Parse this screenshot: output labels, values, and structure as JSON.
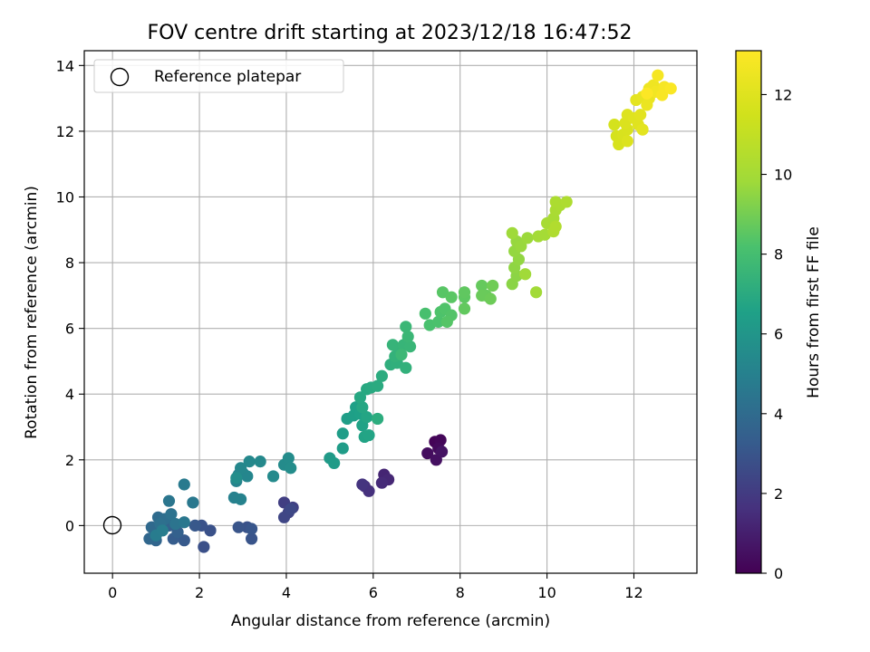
{
  "chart_data": {
    "type": "scatter",
    "title": "FOV centre drift starting at 2023/12/18 16:47:52",
    "xlabel": "Angular distance from reference (arcmin)",
    "ylabel": "Rotation from reference (arcmin)",
    "colorbar_label": "Hours from first FF file",
    "xlim": [
      -0.65,
      13.45
    ],
    "ylim": [
      -1.45,
      14.45
    ],
    "xticks": [
      "0",
      "2",
      "4",
      "6",
      "8",
      "10",
      "12"
    ],
    "yticks": [
      "0",
      "2",
      "4",
      "6",
      "8",
      "10",
      "12",
      "14"
    ],
    "colorbar_ticks": [
      "0",
      "2",
      "4",
      "6",
      "8",
      "10",
      "12"
    ],
    "colorbar_range": [
      0,
      13.1
    ],
    "colormap": "viridis",
    "grid": true,
    "legend": {
      "placement": "upper-left",
      "label": "Reference platepar"
    },
    "reference_point": {
      "x": 0,
      "y": 0
    },
    "point_color_hex": {
      "min": "#440154",
      "max": "#fde725"
    },
    "points": [
      {
        "x": 7.42,
        "y": 2.55,
        "h": 0.1
      },
      {
        "x": 7.55,
        "y": 2.6,
        "h": 0.2
      },
      {
        "x": 7.5,
        "y": 2.35,
        "h": 0.3
      },
      {
        "x": 7.25,
        "y": 2.2,
        "h": 0.4
      },
      {
        "x": 7.45,
        "y": 2.0,
        "h": 0.5
      },
      {
        "x": 7.58,
        "y": 2.25,
        "h": 0.6
      },
      {
        "x": 6.25,
        "y": 1.55,
        "h": 1.2
      },
      {
        "x": 6.35,
        "y": 1.4,
        "h": 1.3
      },
      {
        "x": 6.2,
        "y": 1.3,
        "h": 1.4
      },
      {
        "x": 5.8,
        "y": 1.2,
        "h": 1.5
      },
      {
        "x": 5.9,
        "y": 1.05,
        "h": 1.6
      },
      {
        "x": 5.75,
        "y": 1.25,
        "h": 1.7
      },
      {
        "x": 3.95,
        "y": 0.7,
        "h": 2.1
      },
      {
        "x": 4.15,
        "y": 0.55,
        "h": 2.2
      },
      {
        "x": 4.05,
        "y": 0.4,
        "h": 2.3
      },
      {
        "x": 3.95,
        "y": 0.25,
        "h": 2.4
      },
      {
        "x": 4.1,
        "y": 0.5,
        "h": 2.5
      },
      {
        "x": 2.1,
        "y": -0.65,
        "h": 2.8
      },
      {
        "x": 2.25,
        "y": -0.15,
        "h": 2.85
      },
      {
        "x": 2.05,
        "y": 0.0,
        "h": 2.9
      },
      {
        "x": 3.1,
        "y": -0.05,
        "h": 2.9
      },
      {
        "x": 3.2,
        "y": -0.4,
        "h": 2.95
      },
      {
        "x": 2.9,
        "y": -0.05,
        "h": 3.0
      },
      {
        "x": 3.2,
        "y": -0.1,
        "h": 3.05
      },
      {
        "x": 1.9,
        "y": 0.0,
        "h": 3.1
      },
      {
        "x": 1.65,
        "y": -0.45,
        "h": 3.2
      },
      {
        "x": 1.4,
        "y": -0.4,
        "h": 3.3
      },
      {
        "x": 1.3,
        "y": 0.0,
        "h": 3.4
      },
      {
        "x": 1.5,
        "y": -0.2,
        "h": 3.5
      },
      {
        "x": 1.25,
        "y": 0.1,
        "h": 3.6
      },
      {
        "x": 1.0,
        "y": -0.45,
        "h": 3.7
      },
      {
        "x": 0.85,
        "y": -0.4,
        "h": 3.8
      },
      {
        "x": 0.9,
        "y": -0.05,
        "h": 3.9
      },
      {
        "x": 1.05,
        "y": 0.25,
        "h": 4.0
      },
      {
        "x": 1.2,
        "y": 0.2,
        "h": 4.1
      },
      {
        "x": 1.1,
        "y": 0.05,
        "h": 4.2
      },
      {
        "x": 1.35,
        "y": 0.35,
        "h": 4.3
      },
      {
        "x": 1.45,
        "y": 0.05,
        "h": 4.4
      },
      {
        "x": 1.3,
        "y": 0.75,
        "h": 4.5
      },
      {
        "x": 1.65,
        "y": 0.1,
        "h": 4.55
      },
      {
        "x": 1.85,
        "y": 0.7,
        "h": 4.6
      },
      {
        "x": 1.65,
        "y": 1.25,
        "h": 4.7
      },
      {
        "x": 1.0,
        "y": -0.3,
        "h": 4.75
      },
      {
        "x": 1.15,
        "y": -0.15,
        "h": 4.8
      },
      {
        "x": 2.8,
        "y": 0.85,
        "h": 5.0
      },
      {
        "x": 2.95,
        "y": 0.8,
        "h": 5.05
      },
      {
        "x": 2.85,
        "y": 1.35,
        "h": 5.1
      },
      {
        "x": 2.9,
        "y": 1.55,
        "h": 5.15
      },
      {
        "x": 3.0,
        "y": 1.6,
        "h": 5.2
      },
      {
        "x": 3.1,
        "y": 1.5,
        "h": 5.25
      },
      {
        "x": 2.95,
        "y": 1.75,
        "h": 5.3
      },
      {
        "x": 3.15,
        "y": 1.95,
        "h": 5.35
      },
      {
        "x": 3.4,
        "y": 1.95,
        "h": 5.4
      },
      {
        "x": 3.7,
        "y": 1.5,
        "h": 5.45
      },
      {
        "x": 3.95,
        "y": 1.85,
        "h": 5.5
      },
      {
        "x": 4.05,
        "y": 2.05,
        "h": 5.55
      },
      {
        "x": 4.1,
        "y": 1.75,
        "h": 5.6
      },
      {
        "x": 2.85,
        "y": 1.45,
        "h": 5.65
      },
      {
        "x": 5.0,
        "y": 2.05,
        "h": 6.2
      },
      {
        "x": 5.1,
        "y": 1.9,
        "h": 6.25
      },
      {
        "x": 5.3,
        "y": 2.35,
        "h": 6.3
      },
      {
        "x": 5.3,
        "y": 2.8,
        "h": 6.35
      },
      {
        "x": 5.4,
        "y": 3.25,
        "h": 6.4
      },
      {
        "x": 5.55,
        "y": 3.35,
        "h": 6.45
      },
      {
        "x": 5.6,
        "y": 3.6,
        "h": 6.5
      },
      {
        "x": 5.7,
        "y": 3.4,
        "h": 6.55
      },
      {
        "x": 5.75,
        "y": 3.05,
        "h": 6.6
      },
      {
        "x": 5.8,
        "y": 2.7,
        "h": 6.65
      },
      {
        "x": 5.9,
        "y": 2.75,
        "h": 6.7
      },
      {
        "x": 5.85,
        "y": 3.3,
        "h": 6.75
      },
      {
        "x": 5.75,
        "y": 3.6,
        "h": 6.8
      },
      {
        "x": 5.7,
        "y": 3.9,
        "h": 6.85
      },
      {
        "x": 5.85,
        "y": 4.15,
        "h": 6.9
      },
      {
        "x": 5.95,
        "y": 4.2,
        "h": 6.95
      },
      {
        "x": 6.1,
        "y": 4.25,
        "h": 7.0
      },
      {
        "x": 6.2,
        "y": 4.55,
        "h": 7.05
      },
      {
        "x": 6.1,
        "y": 3.25,
        "h": 7.1
      },
      {
        "x": 6.4,
        "y": 4.9,
        "h": 7.2
      },
      {
        "x": 6.55,
        "y": 4.95,
        "h": 7.25
      },
      {
        "x": 6.75,
        "y": 4.8,
        "h": 7.3
      },
      {
        "x": 6.5,
        "y": 5.15,
        "h": 7.35
      },
      {
        "x": 6.6,
        "y": 5.4,
        "h": 7.4
      },
      {
        "x": 6.45,
        "y": 5.5,
        "h": 7.45
      },
      {
        "x": 6.7,
        "y": 5.5,
        "h": 7.5
      },
      {
        "x": 6.85,
        "y": 5.45,
        "h": 7.55
      },
      {
        "x": 6.8,
        "y": 5.75,
        "h": 7.6
      },
      {
        "x": 6.75,
        "y": 6.05,
        "h": 7.65
      },
      {
        "x": 6.65,
        "y": 5.2,
        "h": 7.7
      },
      {
        "x": 7.2,
        "y": 6.45,
        "h": 8.1
      },
      {
        "x": 7.3,
        "y": 6.1,
        "h": 8.15
      },
      {
        "x": 7.5,
        "y": 6.2,
        "h": 8.2
      },
      {
        "x": 7.55,
        "y": 6.5,
        "h": 8.25
      },
      {
        "x": 7.65,
        "y": 6.6,
        "h": 8.3
      },
      {
        "x": 7.8,
        "y": 6.4,
        "h": 8.35
      },
      {
        "x": 7.7,
        "y": 6.2,
        "h": 8.4
      },
      {
        "x": 7.6,
        "y": 7.1,
        "h": 8.45
      },
      {
        "x": 7.8,
        "y": 6.95,
        "h": 8.5
      },
      {
        "x": 8.1,
        "y": 6.95,
        "h": 8.55
      },
      {
        "x": 8.1,
        "y": 7.1,
        "h": 8.6
      },
      {
        "x": 8.1,
        "y": 6.6,
        "h": 8.65
      },
      {
        "x": 8.5,
        "y": 7.3,
        "h": 8.7
      },
      {
        "x": 8.6,
        "y": 7.0,
        "h": 8.75
      },
      {
        "x": 8.5,
        "y": 7.0,
        "h": 8.8
      },
      {
        "x": 8.7,
        "y": 6.9,
        "h": 8.85
      },
      {
        "x": 8.75,
        "y": 7.3,
        "h": 8.9
      },
      {
        "x": 9.2,
        "y": 7.35,
        "h": 9.4
      },
      {
        "x": 9.3,
        "y": 7.6,
        "h": 9.45
      },
      {
        "x": 9.25,
        "y": 7.85,
        "h": 9.5
      },
      {
        "x": 9.35,
        "y": 8.1,
        "h": 9.55
      },
      {
        "x": 9.25,
        "y": 8.35,
        "h": 9.6
      },
      {
        "x": 9.3,
        "y": 8.65,
        "h": 9.65
      },
      {
        "x": 9.4,
        "y": 8.5,
        "h": 9.7
      },
      {
        "x": 9.55,
        "y": 8.75,
        "h": 9.75
      },
      {
        "x": 9.2,
        "y": 8.9,
        "h": 9.8
      },
      {
        "x": 9.5,
        "y": 7.65,
        "h": 9.85
      },
      {
        "x": 9.75,
        "y": 7.1,
        "h": 9.9
      },
      {
        "x": 9.8,
        "y": 8.8,
        "h": 9.95
      },
      {
        "x": 9.95,
        "y": 8.85,
        "h": 10.0
      },
      {
        "x": 10.0,
        "y": 9.2,
        "h": 10.05
      },
      {
        "x": 10.15,
        "y": 9.35,
        "h": 10.1
      },
      {
        "x": 10.2,
        "y": 9.6,
        "h": 10.15
      },
      {
        "x": 10.3,
        "y": 9.75,
        "h": 10.2
      },
      {
        "x": 10.2,
        "y": 9.85,
        "h": 10.25
      },
      {
        "x": 10.45,
        "y": 9.85,
        "h": 10.3
      },
      {
        "x": 10.15,
        "y": 8.95,
        "h": 10.35
      },
      {
        "x": 10.2,
        "y": 9.1,
        "h": 10.4
      },
      {
        "x": 11.55,
        "y": 12.2,
        "h": 11.6
      },
      {
        "x": 11.6,
        "y": 11.85,
        "h": 11.65
      },
      {
        "x": 11.65,
        "y": 11.6,
        "h": 11.7
      },
      {
        "x": 11.75,
        "y": 11.9,
        "h": 11.75
      },
      {
        "x": 11.85,
        "y": 12.05,
        "h": 11.8
      },
      {
        "x": 11.8,
        "y": 12.25,
        "h": 11.85
      },
      {
        "x": 11.85,
        "y": 11.7,
        "h": 11.9
      },
      {
        "x": 11.85,
        "y": 12.5,
        "h": 11.95
      },
      {
        "x": 12.0,
        "y": 12.4,
        "h": 12.0
      },
      {
        "x": 12.1,
        "y": 12.2,
        "h": 12.05
      },
      {
        "x": 12.15,
        "y": 12.5,
        "h": 12.1
      },
      {
        "x": 12.2,
        "y": 12.05,
        "h": 12.15
      },
      {
        "x": 12.05,
        "y": 12.95,
        "h": 12.2
      },
      {
        "x": 12.2,
        "y": 13.05,
        "h": 12.3
      },
      {
        "x": 12.35,
        "y": 13.0,
        "h": 12.4
      },
      {
        "x": 12.3,
        "y": 12.8,
        "h": 12.45
      },
      {
        "x": 12.35,
        "y": 13.3,
        "h": 12.5
      },
      {
        "x": 12.45,
        "y": 13.4,
        "h": 12.6
      },
      {
        "x": 12.5,
        "y": 13.2,
        "h": 12.7
      },
      {
        "x": 12.55,
        "y": 13.7,
        "h": 12.8
      },
      {
        "x": 12.7,
        "y": 13.35,
        "h": 12.85
      },
      {
        "x": 12.65,
        "y": 13.1,
        "h": 12.9
      },
      {
        "x": 12.85,
        "y": 13.3,
        "h": 13.0
      },
      {
        "x": 12.3,
        "y": 13.15,
        "h": 13.05
      }
    ]
  }
}
